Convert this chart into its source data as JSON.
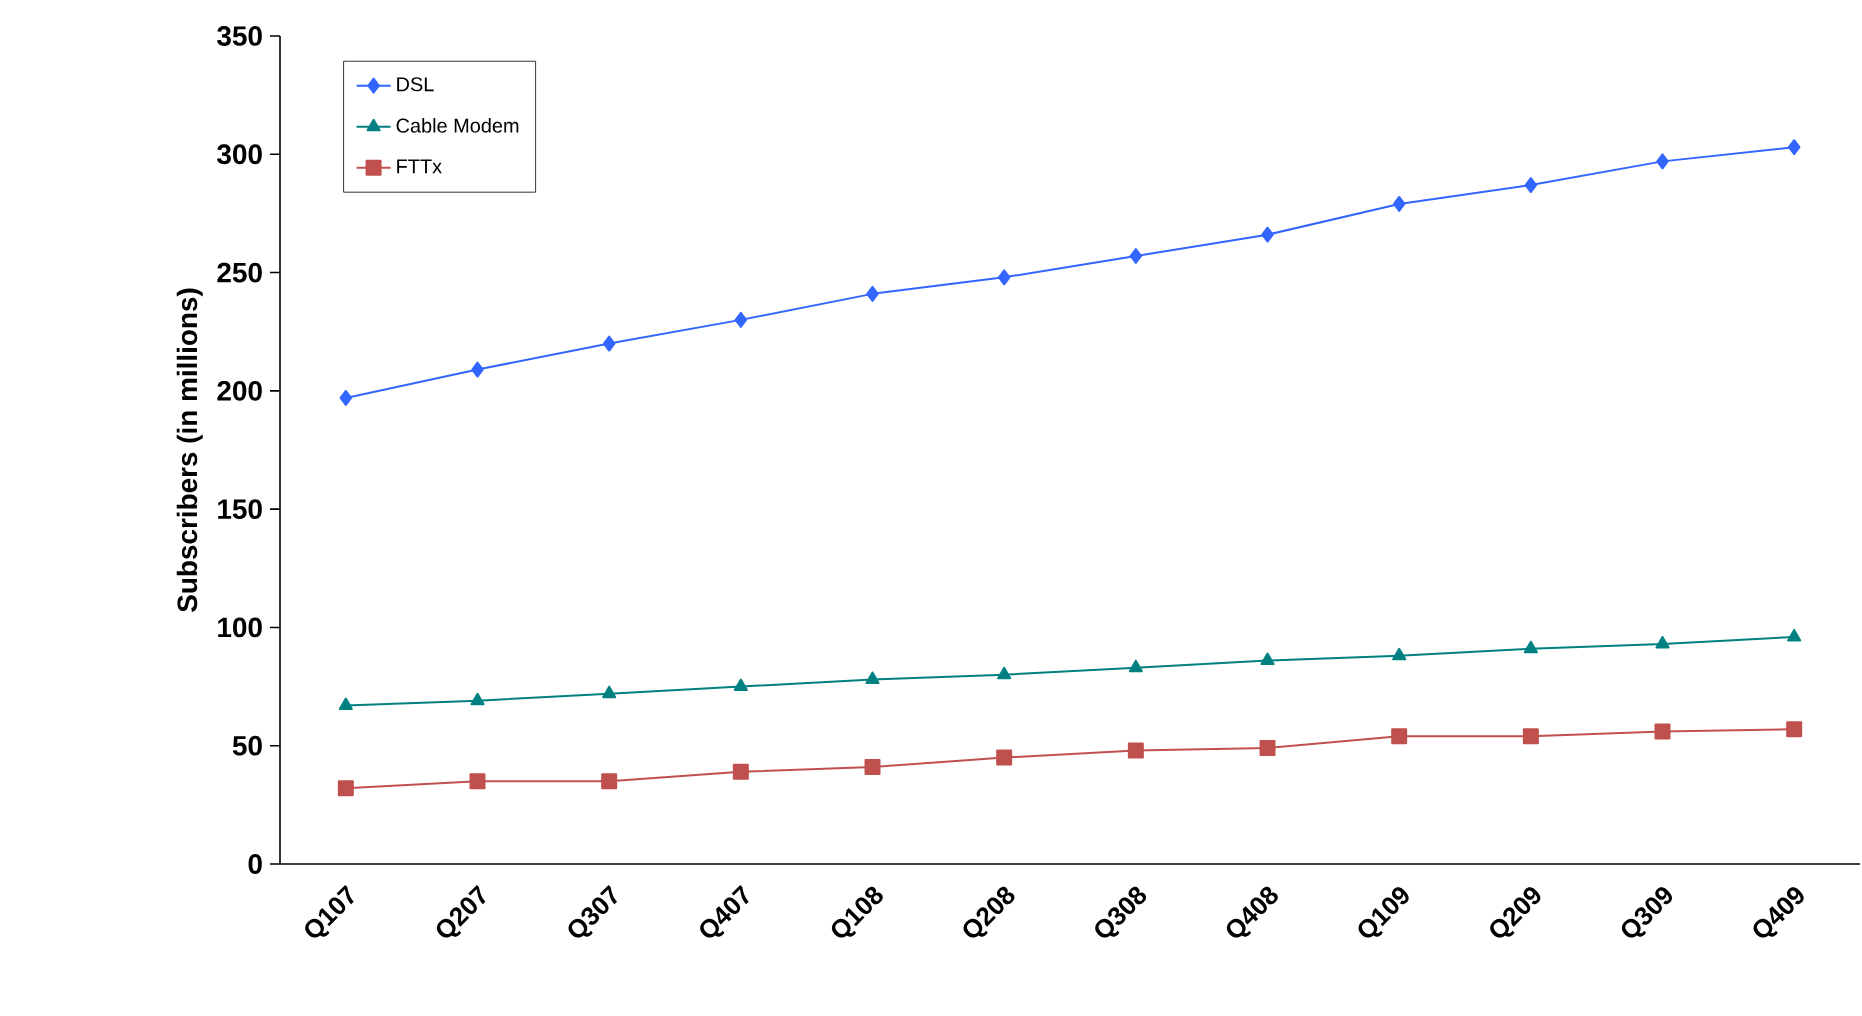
{
  "chart_data": {
    "type": "line",
    "ylabel": "Subscribers (in millions)",
    "categories": [
      "Q107",
      "Q207",
      "Q307",
      "Q407",
      "Q108",
      "Q208",
      "Q308",
      "Q408",
      "Q109",
      "Q209",
      "Q309",
      "Q409"
    ],
    "series": [
      {
        "name": "DSL",
        "color": "#3366ff",
        "marker": "diamond",
        "values": [
          197,
          209,
          220,
          230,
          241,
          248,
          257,
          266,
          279,
          287,
          297,
          303
        ]
      },
      {
        "name": "Cable Modem",
        "color": "#008080",
        "marker": "triangle",
        "values": [
          67,
          69,
          72,
          75,
          78,
          80,
          83,
          86,
          88,
          91,
          93,
          96
        ]
      },
      {
        "name": "FTTx",
        "color": "#c0504d",
        "marker": "square",
        "values": [
          32,
          35,
          35,
          39,
          41,
          45,
          48,
          49,
          54,
          54,
          56,
          57
        ]
      }
    ],
    "ylim": [
      0,
      350
    ],
    "yticks": [
      0,
      50,
      100,
      150,
      200,
      250,
      300,
      350
    ],
    "legend": "top left",
    "grid": false,
    "line_style": "solid"
  }
}
